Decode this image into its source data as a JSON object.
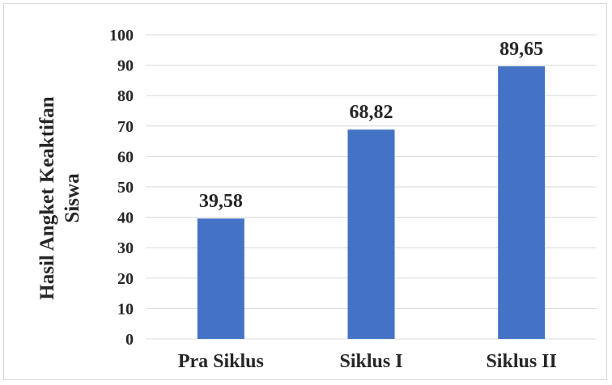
{
  "chart_data": {
    "type": "bar",
    "categories": [
      "Pra Siklus",
      "Siklus I",
      "Siklus II"
    ],
    "values": [
      39.58,
      68.82,
      89.65
    ],
    "data_labels": [
      "39,58",
      "68,82",
      "89,65"
    ],
    "title": "",
    "xlabel": "",
    "ylabel_lines": [
      "Hasil Angket Keaktifan",
      "Siswa"
    ],
    "ylim": [
      0,
      100
    ],
    "yticks": [
      "0",
      "10",
      "20",
      "30",
      "40",
      "50",
      "60",
      "70",
      "80",
      "90",
      "100"
    ],
    "grid": true,
    "legend": "none",
    "bar_color": "#4472c4",
    "grid_color": "#d9d9d9"
  }
}
